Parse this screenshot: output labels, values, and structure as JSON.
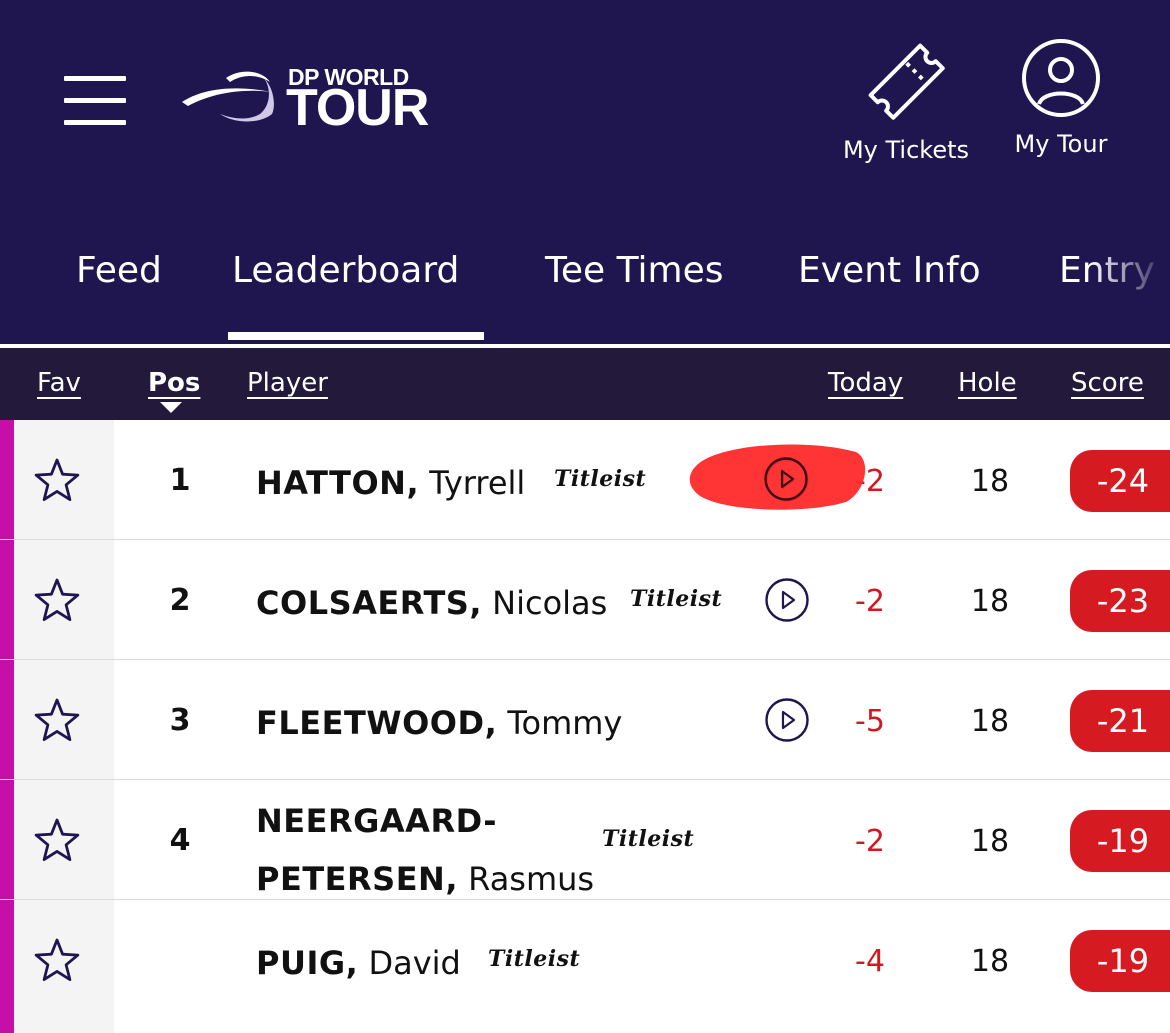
{
  "header": {
    "logo_top": "DP WORLD",
    "logo_bottom": "TOUR",
    "my_tickets": "My Tickets",
    "my_tour": "My Tour"
  },
  "tabs": [
    {
      "label": "Feed"
    },
    {
      "label": "Leaderboard",
      "active": true
    },
    {
      "label": "Tee Times"
    },
    {
      "label": "Event Info"
    },
    {
      "label": "Entry"
    }
  ],
  "columns": {
    "fav": "Fav",
    "pos": "Pos",
    "player": "Player",
    "today": "Today",
    "hole": "Hole",
    "score": "Score"
  },
  "sponsor_text": "Titleist",
  "rows": [
    {
      "pos": "1",
      "last": "HATTON,",
      "first": "Tyrrell",
      "sponsor": "Titleist",
      "video": true,
      "today": "-2",
      "hole": "18",
      "score": "-24"
    },
    {
      "pos": "2",
      "last": "COLSAERTS,",
      "first": "Nicolas",
      "sponsor": "Titleist",
      "video": true,
      "today": "-2",
      "hole": "18",
      "score": "-23"
    },
    {
      "pos": "3",
      "last": "FLEETWOOD,",
      "first": "Tommy",
      "sponsor": "",
      "video": true,
      "today": "-5",
      "hole": "18",
      "score": "-21"
    },
    {
      "pos": "4",
      "last_line1": "NEERGAARD-",
      "last_line2": "PETERSEN,",
      "first": "Rasmus",
      "sponsor": "Titleist",
      "video": false,
      "today": "-2",
      "hole": "18",
      "score": "-19"
    },
    {
      "pos": "",
      "last": "PUIG,",
      "first": "David",
      "sponsor": "Titleist",
      "video": false,
      "today": "-4",
      "hole": "18",
      "score": "-19"
    }
  ],
  "colors": {
    "header_bg": "#1f1650",
    "column_header_bg": "#231a3b",
    "accent_stripe": "#c60fa6",
    "score_red": "#d61a22",
    "today_red": "#d5171f"
  }
}
